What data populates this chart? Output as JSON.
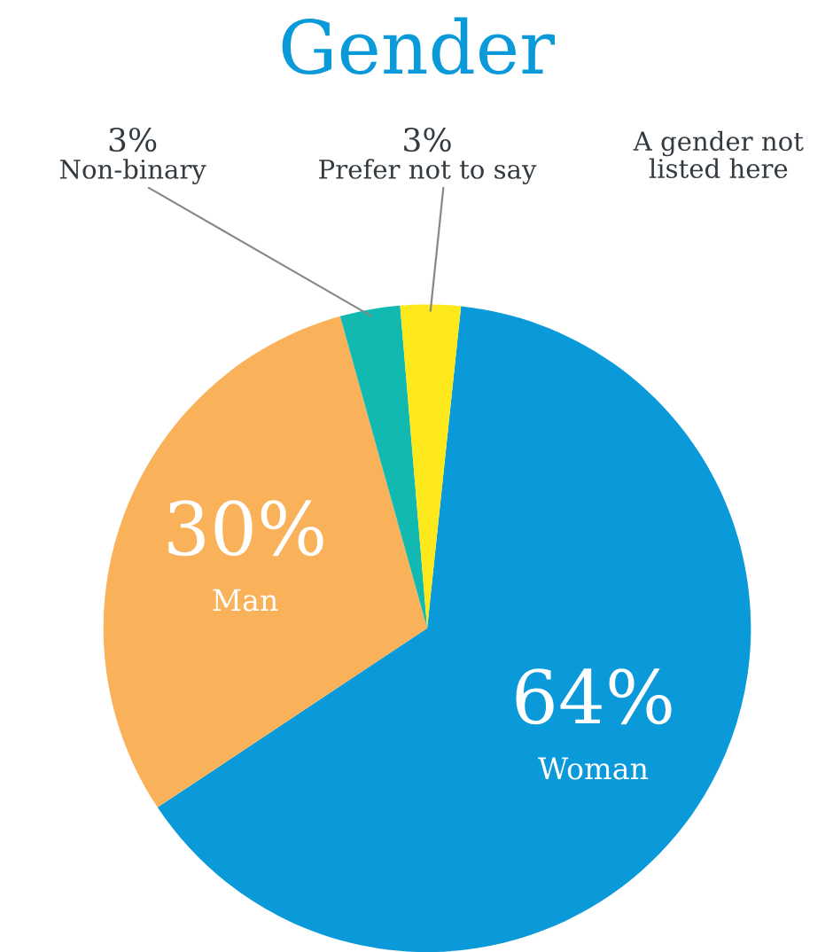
{
  "chart_data": {
    "type": "pie",
    "title": "Gender",
    "categories": [
      "Woman",
      "Man",
      "Non-binary",
      "Prefer not to say",
      "A gender not listed here"
    ],
    "values": [
      64,
      30,
      3,
      3,
      0
    ],
    "value_labels": [
      "64%",
      "30%",
      "3%",
      "3%",
      null
    ],
    "colors": [
      "#0b9ad9",
      "#f9b25a",
      "#12b9b0",
      "#fde81c",
      "#999999"
    ],
    "legend": false
  }
}
